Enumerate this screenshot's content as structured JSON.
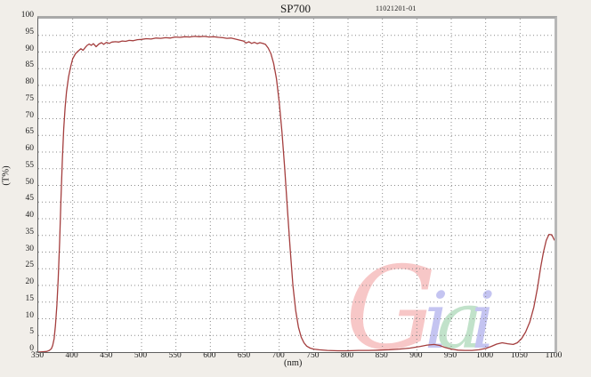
{
  "header": {
    "title": "SP700",
    "doc_number": "11021201-01"
  },
  "chart_data": {
    "type": "line",
    "title": "SP700",
    "xlabel": "(nm)",
    "ylabel": "(T%)",
    "xlim": [
      350,
      1100
    ],
    "ylim": [
      0,
      100
    ],
    "x_ticks": [
      350,
      400,
      450,
      500,
      550,
      600,
      650,
      700,
      750,
      800,
      850,
      900,
      950,
      1000,
      1050,
      1100
    ],
    "y_ticks": [
      0,
      5,
      10,
      15,
      20,
      25,
      30,
      35,
      40,
      45,
      50,
      55,
      60,
      65,
      70,
      75,
      80,
      85,
      90,
      95,
      100
    ],
    "grid": "dotted",
    "grid_color": "#8a8a8a",
    "legend": "none",
    "series": [
      {
        "name": "transmission",
        "color": "#a43e3e",
        "points": [
          [
            350,
            0
          ],
          [
            356,
            0.1
          ],
          [
            362,
            0.2
          ],
          [
            366,
            0.5
          ],
          [
            369,
            1
          ],
          [
            371,
            2
          ],
          [
            373,
            4
          ],
          [
            375,
            8
          ],
          [
            377,
            14
          ],
          [
            379,
            22
          ],
          [
            381,
            33
          ],
          [
            383,
            46
          ],
          [
            385,
            58
          ],
          [
            387,
            67
          ],
          [
            389,
            73.5
          ],
          [
            391,
            78
          ],
          [
            394,
            82.5
          ],
          [
            397,
            85.5
          ],
          [
            400,
            88
          ],
          [
            404,
            89.5
          ],
          [
            408,
            90.3
          ],
          [
            412,
            91
          ],
          [
            415,
            90.5
          ],
          [
            418,
            91.3
          ],
          [
            421,
            92
          ],
          [
            424,
            92.4
          ],
          [
            427,
            92
          ],
          [
            430,
            92.5
          ],
          [
            434,
            91.6
          ],
          [
            438,
            92.4
          ],
          [
            442,
            92.8
          ],
          [
            445,
            92.3
          ],
          [
            449,
            92.9
          ],
          [
            453,
            92.6
          ],
          [
            457,
            93
          ],
          [
            462,
            93.1
          ],
          [
            467,
            93
          ],
          [
            472,
            93.3
          ],
          [
            477,
            93.2
          ],
          [
            482,
            93.5
          ],
          [
            488,
            93.4
          ],
          [
            494,
            93.7
          ],
          [
            500,
            93.8
          ],
          [
            507,
            94
          ],
          [
            514,
            93.9
          ],
          [
            521,
            94.2
          ],
          [
            528,
            94.1
          ],
          [
            535,
            94.3
          ],
          [
            542,
            94.2
          ],
          [
            549,
            94.5
          ],
          [
            556,
            94.4
          ],
          [
            563,
            94.6
          ],
          [
            570,
            94.5
          ],
          [
            577,
            94.7
          ],
          [
            584,
            94.6
          ],
          [
            591,
            94.7
          ],
          [
            598,
            94.5
          ],
          [
            605,
            94.6
          ],
          [
            612,
            94.4
          ],
          [
            618,
            94.3
          ],
          [
            624,
            94.1
          ],
          [
            630,
            94.2
          ],
          [
            636,
            93.9
          ],
          [
            642,
            93.6
          ],
          [
            648,
            93.3
          ],
          [
            652,
            92.7
          ],
          [
            656,
            93.1
          ],
          [
            660,
            92.6
          ],
          [
            664,
            92.9
          ],
          [
            668,
            92.5
          ],
          [
            672,
            92.8
          ],
          [
            676,
            92.6
          ],
          [
            680,
            92.3
          ],
          [
            684,
            91.2
          ],
          [
            688,
            89.5
          ],
          [
            692,
            86.5
          ],
          [
            696,
            82
          ],
          [
            700,
            75
          ],
          [
            704,
            66
          ],
          [
            708,
            55
          ],
          [
            712,
            43
          ],
          [
            716,
            31
          ],
          [
            720,
            20
          ],
          [
            724,
            12.5
          ],
          [
            728,
            7.5
          ],
          [
            732,
            4.5
          ],
          [
            736,
            2.8
          ],
          [
            740,
            1.8
          ],
          [
            745,
            1.2
          ],
          [
            750,
            0.9
          ],
          [
            758,
            0.7
          ],
          [
            770,
            0.5
          ],
          [
            785,
            0.4
          ],
          [
            800,
            0.4
          ],
          [
            815,
            0.5
          ],
          [
            830,
            0.5
          ],
          [
            845,
            0.6
          ],
          [
            860,
            0.7
          ],
          [
            875,
            0.9
          ],
          [
            890,
            1.2
          ],
          [
            905,
            1.7
          ],
          [
            915,
            2.1
          ],
          [
            925,
            2.3
          ],
          [
            933,
            2
          ],
          [
            941,
            1.4
          ],
          [
            950,
            0.9
          ],
          [
            960,
            0.6
          ],
          [
            970,
            0.5
          ],
          [
            980,
            0.5
          ],
          [
            990,
            0.7
          ],
          [
            1000,
            1.1
          ],
          [
            1008,
            1.7
          ],
          [
            1016,
            2.4
          ],
          [
            1024,
            2.8
          ],
          [
            1032,
            2.5
          ],
          [
            1040,
            2.3
          ],
          [
            1046,
            2.8
          ],
          [
            1052,
            4
          ],
          [
            1058,
            6
          ],
          [
            1064,
            9
          ],
          [
            1070,
            13.5
          ],
          [
            1075,
            19
          ],
          [
            1080,
            25.5
          ],
          [
            1084,
            30
          ],
          [
            1088,
            33.5
          ],
          [
            1092,
            35.3
          ],
          [
            1096,
            35.2
          ],
          [
            1100,
            33.5
          ]
        ]
      }
    ]
  },
  "watermark": {
    "text": "Giai",
    "letters": [
      {
        "char": "G",
        "color": "#f29a9a"
      },
      {
        "char": "i",
        "color": "#9595e6"
      },
      {
        "char": "a",
        "color": "#8fcc9f"
      },
      {
        "char": "i",
        "color": "#9595e6"
      }
    ]
  },
  "colors": {
    "page_background": "#f1eee9",
    "plot_background": "#ffffff",
    "curve": "#a43e3e",
    "gridline": "#8a8a8a"
  }
}
